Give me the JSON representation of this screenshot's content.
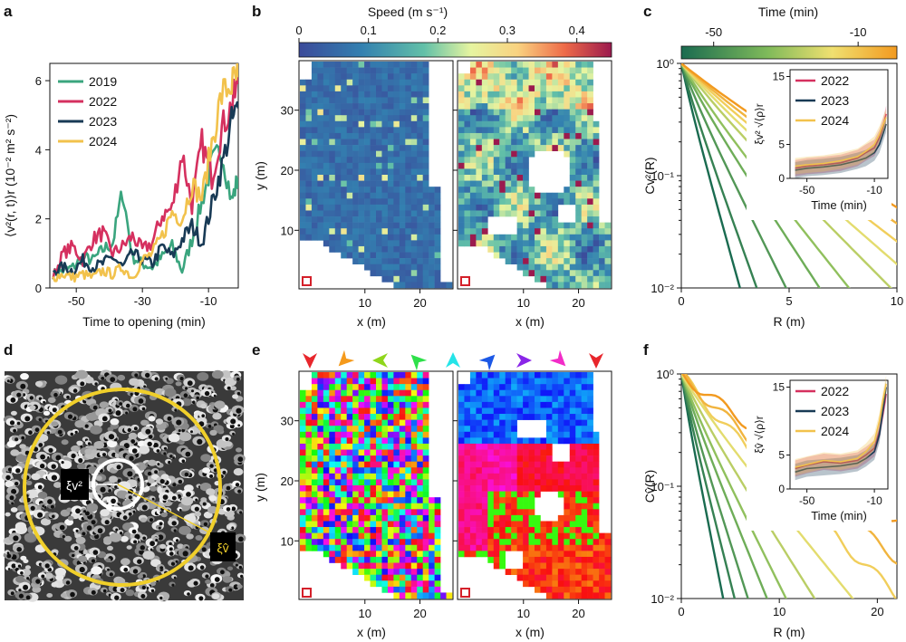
{
  "panels": {
    "a": "a",
    "b": "b",
    "c": "c",
    "d": "d",
    "e": "e",
    "f": "f"
  },
  "chart_data": [
    {
      "id": "a",
      "type": "line",
      "xlabel": "Time to opening (min)",
      "ylabel": "⟨v²(r, t)⟩r (10⁻² m² s⁻²)",
      "xlim": [
        -58,
        -1
      ],
      "ylim": [
        0,
        6.5
      ],
      "xticks": [
        "-50",
        "-30",
        "-10"
      ],
      "yticks": [
        "0",
        "2",
        "4",
        "6"
      ],
      "series": [
        {
          "name": "2019",
          "color": "#3aa57e",
          "x": [
            -57,
            -54,
            -51,
            -48,
            -45,
            -42,
            -39,
            -36,
            -33,
            -30,
            -27,
            -24,
            -21,
            -18,
            -15,
            -12,
            -9,
            -6,
            -3,
            -1
          ],
          "values": [
            0.4,
            0.5,
            0.6,
            0.9,
            0.8,
            1.1,
            1.3,
            2.8,
            0.9,
            0.7,
            0.6,
            0.9,
            1.2,
            0.5,
            1.4,
            2.5,
            3.6,
            4.0,
            2.5,
            3.2
          ]
        },
        {
          "name": "2022",
          "color": "#d5305f",
          "x": [
            -57,
            -54,
            -51,
            -48,
            -45,
            -42,
            -39,
            -36,
            -33,
            -30,
            -27,
            -24,
            -21,
            -18,
            -15,
            -12,
            -9,
            -6,
            -3,
            -1
          ],
          "values": [
            0.3,
            1.0,
            1.2,
            0.8,
            1.4,
            1.6,
            1.0,
            1.2,
            1.5,
            1.1,
            1.3,
            2.1,
            2.3,
            3.9,
            2.4,
            4.2,
            3.2,
            4.6,
            5.3,
            5.9
          ]
        },
        {
          "name": "2023",
          "color": "#183a55",
          "x": [
            -57,
            -54,
            -51,
            -48,
            -45,
            -42,
            -39,
            -36,
            -33,
            -30,
            -27,
            -24,
            -21,
            -18,
            -15,
            -12,
            -9,
            -6,
            -3,
            -1
          ],
          "values": [
            0.5,
            0.6,
            0.5,
            0.8,
            0.6,
            0.7,
            0.9,
            0.6,
            1.0,
            0.8,
            0.7,
            1.2,
            0.9,
            1.4,
            1.8,
            1.3,
            2.4,
            3.5,
            4.8,
            5.2
          ]
        },
        {
          "name": "2024",
          "color": "#f2c24c",
          "x": [
            -57,
            -54,
            -51,
            -48,
            -45,
            -42,
            -39,
            -36,
            -33,
            -30,
            -27,
            -24,
            -21,
            -18,
            -15,
            -12,
            -9,
            -6,
            -3,
            -1
          ],
          "values": [
            0.3,
            0.4,
            0.3,
            0.4,
            0.3,
            0.5,
            0.4,
            0.6,
            0.3,
            0.8,
            1.0,
            1.5,
            2.2,
            2.0,
            3.0,
            2.6,
            4.2,
            5.6,
            5.9,
            6.1
          ]
        }
      ]
    },
    {
      "id": "b",
      "type": "heatmap",
      "colorbar_label": "Speed (m s⁻¹)",
      "colorbar_ticks": [
        "0",
        "0.1",
        "0.2",
        "0.3",
        "0.4"
      ],
      "xlabel": "x (m)",
      "ylabel": "y (m)",
      "xticks": [
        "10",
        "20"
      ],
      "yticks": [
        "10",
        "20",
        "30"
      ]
    },
    {
      "id": "c",
      "type": "line",
      "colorbar_label": "Time (min)",
      "colorbar_ticks": [
        "-50",
        "-10"
      ],
      "xlabel": "R (m)",
      "ylabel": "Cv²(R)",
      "xlim": [
        0,
        10
      ],
      "ylim_log": [
        0.01,
        1
      ],
      "xticks": [
        "0",
        "5",
        "10"
      ],
      "yticks": [
        "10⁻²",
        "10⁻¹",
        "10⁰"
      ],
      "decay_lengths": [
        1.4,
        1.8,
        2.5,
        3.3,
        4.0,
        5.0,
        5.8,
        6.6,
        7.4,
        8.3
      ],
      "inset": {
        "xlabel": "Time (min)",
        "ylabel": "ξv² √⟨ρ⟩r",
        "xticks": [
          "-50",
          "-10"
        ],
        "yticks": [
          "0",
          "5",
          "15"
        ],
        "ylim": [
          0,
          16
        ],
        "series": [
          {
            "name": "2022",
            "color": "#d5305f",
            "x": [
              -57,
              -50,
              -40,
              -30,
              -20,
              -15,
              -10,
              -7,
              -5,
              -3
            ],
            "values": [
              1.5,
              1.8,
              2.0,
              2.3,
              3.0,
              3.8,
              4.5,
              6.0,
              7.5,
              9.5
            ]
          },
          {
            "name": "2023",
            "color": "#183a55",
            "x": [
              -57,
              -50,
              -40,
              -30,
              -20,
              -15,
              -10,
              -7,
              -5,
              -3
            ],
            "values": [
              1.2,
              1.5,
              1.7,
              2.0,
              2.6,
              3.0,
              3.8,
              5.0,
              6.5,
              8.0
            ]
          },
          {
            "name": "2024",
            "color": "#f2c24c",
            "x": [
              -57,
              -50,
              -40,
              -30,
              -20,
              -15,
              -10,
              -7,
              -5,
              -3
            ],
            "values": [
              1.8,
              2.0,
              2.2,
              2.6,
              3.2,
              4.0,
              5.0,
              6.5,
              7.8,
              9.0
            ]
          }
        ]
      }
    },
    {
      "id": "d",
      "type": "image",
      "labels": [
        "ξv²",
        "ξv̂"
      ]
    },
    {
      "id": "e",
      "type": "heatmap",
      "xlabel": "x (m)",
      "ylabel": "y (m)",
      "xticks": [
        "10",
        "20"
      ],
      "yticks": [
        "10",
        "20",
        "30"
      ],
      "arrow_colors": [
        "#e8262c",
        "#f59a1b",
        "#8fd61b",
        "#2ee04a",
        "#24e4e8",
        "#1c58e6",
        "#8a25e8",
        "#f22cc8",
        "#e8262c"
      ]
    },
    {
      "id": "f",
      "type": "line",
      "xlabel": "R (m)",
      "ylabel": "Cv̂(R)",
      "xlim": [
        0,
        22
      ],
      "ylim_log": [
        0.01,
        1
      ],
      "xticks": [
        "0",
        "10",
        "20"
      ],
      "yticks": [
        "10⁻²",
        "10⁻¹",
        "10⁰"
      ],
      "decay_lengths": [
        2.2,
        2.8,
        3.5,
        4.5,
        5.5,
        7.0,
        9.0,
        11.5,
        14.0,
        18.0
      ],
      "inset": {
        "xlabel": "Time (min)",
        "ylabel": "ξv̂ √⟨ρ⟩r",
        "xticks": [
          "-50",
          "-10"
        ],
        "yticks": [
          "0",
          "5",
          "15"
        ],
        "ylim": [
          0,
          16
        ],
        "series": [
          {
            "name": "2022",
            "color": "#d5305f",
            "x": [
              -57,
              -50,
              -40,
              -30,
              -20,
              -15,
              -10,
              -7,
              -5,
              -3
            ],
            "values": [
              3.0,
              3.5,
              4.0,
              3.8,
              4.2,
              5.0,
              6.0,
              8.5,
              11.0,
              14.0
            ]
          },
          {
            "name": "2023",
            "color": "#183a55",
            "x": [
              -57,
              -50,
              -40,
              -30,
              -20,
              -15,
              -10,
              -7,
              -5,
              -3
            ],
            "values": [
              2.5,
              3.0,
              3.2,
              3.4,
              3.8,
              4.5,
              5.5,
              8.0,
              11.5,
              15.0
            ]
          },
          {
            "name": "2024",
            "color": "#f2c24c",
            "x": [
              -57,
              -50,
              -40,
              -30,
              -20,
              -15,
              -10,
              -7,
              -5,
              -3
            ],
            "values": [
              3.2,
              3.6,
              4.2,
              4.0,
              4.5,
              5.5,
              7.0,
              10.0,
              13.0,
              15.5
            ]
          }
        ]
      }
    }
  ]
}
